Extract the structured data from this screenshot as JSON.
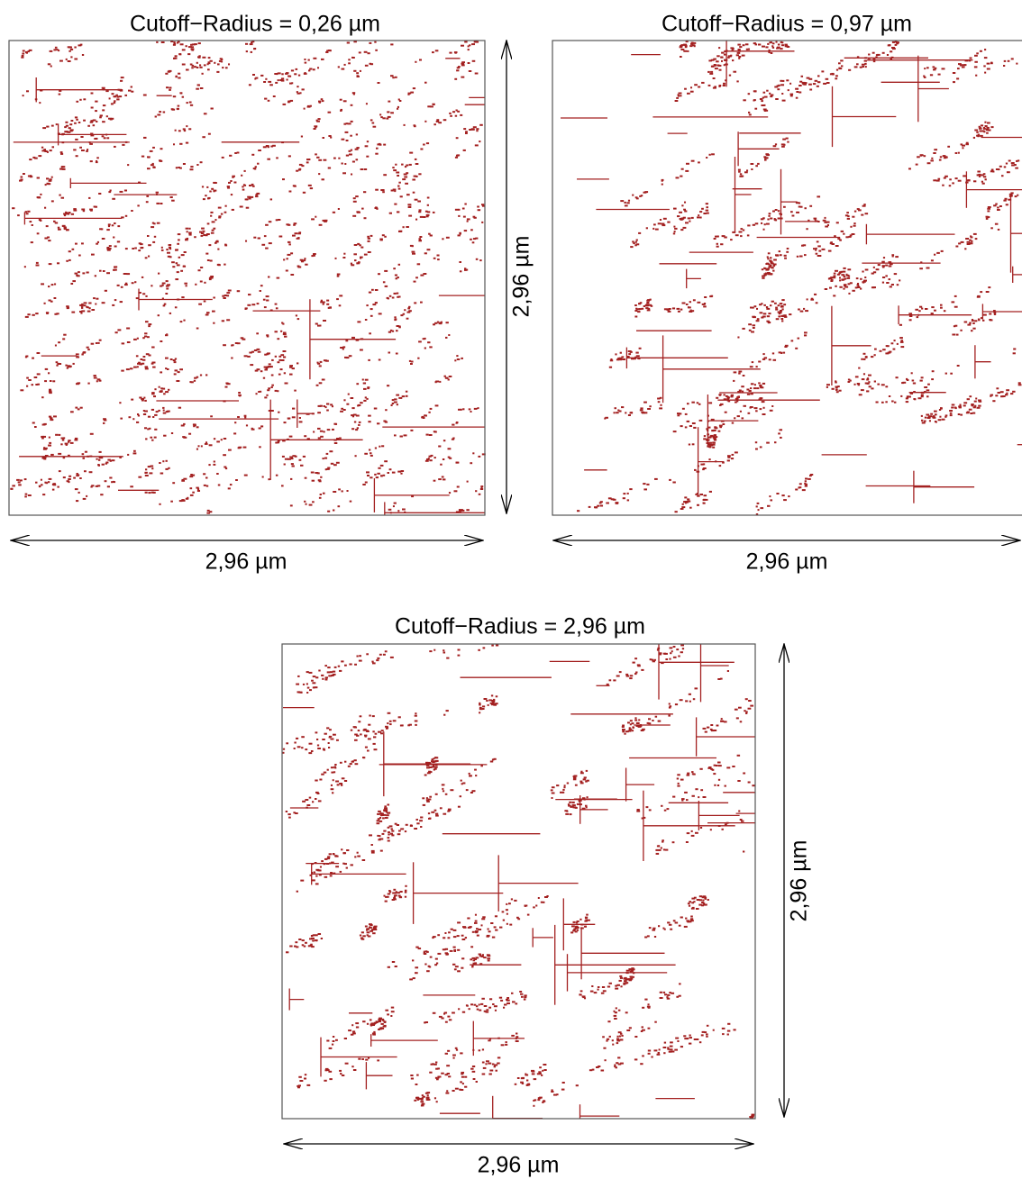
{
  "panels": [
    {
      "title": "Cutoff−Radius = 0,26 µm",
      "width_label": "2,96 µm",
      "height_label": "2,96 µm"
    },
    {
      "title": "Cutoff−Radius = 0,97 µm",
      "width_label": "2,96 µm"
    },
    {
      "title": "Cutoff−Radius = 2,96 µm",
      "width_label": "2,96 µm",
      "height_label": "2,96 µm"
    }
  ]
}
